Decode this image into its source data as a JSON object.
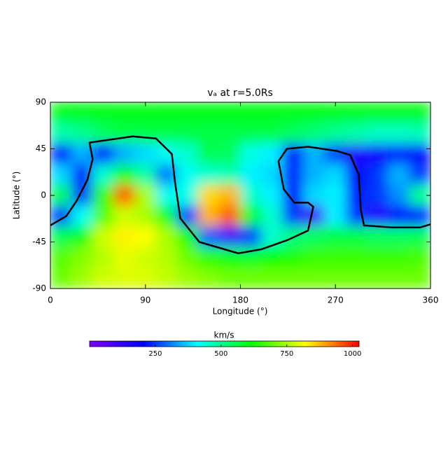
{
  "chart_data": {
    "type": "heatmap",
    "title": "vₐ at r=5.0Rs",
    "x_label": "Longitude (°)",
    "y_label": "Latitude (°)",
    "xlim": [
      0,
      360
    ],
    "ylim": [
      -90,
      90
    ],
    "xticks": [
      0,
      90,
      180,
      270,
      360
    ],
    "yticks": [
      90,
      45,
      0,
      -45,
      -90
    ],
    "x": [
      10,
      30,
      50,
      70,
      90,
      110,
      130,
      150,
      170,
      190,
      210,
      230,
      250,
      270,
      290,
      310,
      330,
      350
    ],
    "y": [
      80,
      60,
      40,
      20,
      0,
      -20,
      -40,
      -60,
      -80
    ],
    "z": [
      [
        600,
        600,
        600,
        600,
        600,
        600,
        600,
        600,
        600,
        600,
        600,
        600,
        600,
        600,
        600,
        600,
        600,
        600
      ],
      [
        480,
        500,
        540,
        560,
        560,
        560,
        560,
        560,
        560,
        560,
        560,
        540,
        520,
        500,
        480,
        460,
        460,
        470
      ],
      [
        200,
        350,
        200,
        350,
        380,
        420,
        450,
        550,
        540,
        430,
        400,
        200,
        350,
        250,
        150,
        180,
        220,
        200
      ],
      [
        380,
        200,
        450,
        600,
        480,
        300,
        420,
        450,
        470,
        400,
        380,
        230,
        350,
        380,
        200,
        250,
        350,
        250
      ],
      [
        550,
        250,
        650,
        950,
        750,
        420,
        430,
        850,
        880,
        450,
        400,
        200,
        380,
        400,
        220,
        250,
        320,
        500
      ],
      [
        250,
        420,
        680,
        780,
        750,
        600,
        250,
        880,
        950,
        600,
        450,
        250,
        100,
        400,
        250,
        150,
        200,
        220
      ],
      [
        550,
        600,
        780,
        830,
        820,
        750,
        620,
        280,
        120,
        250,
        450,
        520,
        540,
        560,
        560,
        540,
        540,
        550
      ],
      [
        680,
        720,
        760,
        800,
        780,
        760,
        700,
        650,
        600,
        580,
        620,
        640,
        660,
        660,
        660,
        660,
        660,
        670
      ],
      [
        700,
        740,
        780,
        790,
        790,
        770,
        740,
        720,
        700,
        700,
        700,
        700,
        700,
        700,
        700,
        700,
        700,
        700
      ]
    ],
    "contour": {
      "x": [
        0,
        15,
        25,
        35,
        40,
        37,
        78,
        100,
        115,
        118,
        123,
        141,
        178,
        200,
        225,
        244,
        249,
        244,
        231,
        221,
        216,
        224,
        244,
        271,
        284,
        292,
        294,
        297,
        324,
        350,
        360
      ],
      "y": [
        -29,
        -20,
        -5,
        15,
        35,
        51,
        57,
        55,
        40,
        13,
        -22,
        -45,
        -56,
        -52,
        -43,
        -34,
        -11,
        -7,
        -7,
        6,
        33,
        45,
        47,
        43,
        39,
        20,
        -14,
        -29,
        -31,
        -31,
        -28
      ]
    },
    "colormap": [
      "#7f00ff",
      "#0000ff",
      "#00ffff",
      "#00ff00",
      "#ffff00",
      "#ff0000"
    ],
    "colorbar": {
      "label": "km/s",
      "lim": [
        0,
        1025
      ],
      "ticks": [
        250,
        500,
        750,
        1000
      ]
    }
  }
}
